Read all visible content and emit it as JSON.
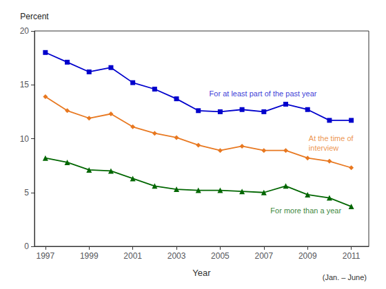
{
  "chart_data": {
    "type": "line",
    "x": [
      1997,
      1998,
      1999,
      2000,
      2001,
      2002,
      2003,
      2004,
      2005,
      2006,
      2007,
      2008,
      2009,
      2010,
      2011
    ],
    "series": [
      {
        "color": "#0000CC",
        "marker": "square",
        "values": [
          18.0,
          17.1,
          16.2,
          16.6,
          15.2,
          14.6,
          13.7,
          12.6,
          12.5,
          12.7,
          12.5,
          13.2,
          12.7,
          11.7,
          11.7
        ]
      },
      {
        "color": "#E87820",
        "marker": "diamond",
        "values": [
          13.9,
          12.6,
          11.9,
          12.3,
          11.1,
          10.5,
          10.1,
          9.4,
          8.9,
          9.3,
          8.9,
          8.9,
          8.2,
          7.9,
          7.3
        ]
      },
      {
        "color": "#006600",
        "marker": "triangle",
        "values": [
          8.2,
          7.8,
          7.1,
          7.0,
          6.3,
          5.6,
          5.3,
          5.2,
          5.2,
          5.1,
          5.0,
          5.6,
          4.8,
          4.5,
          3.7
        ]
      }
    ],
    "xlabel": "Year",
    "ylabel": "Percent",
    "xlim": [
      1996.5,
      2011.8
    ],
    "xticks": [
      1997,
      1999,
      2001,
      2003,
      2005,
      2007,
      2009,
      2011
    ],
    "ylim": [
      0,
      20
    ],
    "yticks": [
      0,
      5,
      10,
      15,
      20
    ],
    "grid": false,
    "annotations": [
      {
        "text": "For at least part of the past year",
        "x": 2004.5,
        "y": 14.2,
        "color": "#0000CC"
      },
      {
        "text": "At the time of\ninterview",
        "x": 2009.05,
        "y": 9.6,
        "color": "#E87820"
      },
      {
        "text": "For more than a year",
        "x": 2007.3,
        "y": 3.3,
        "color": "#006600"
      }
    ],
    "footnote": "(Jan. – June)"
  }
}
